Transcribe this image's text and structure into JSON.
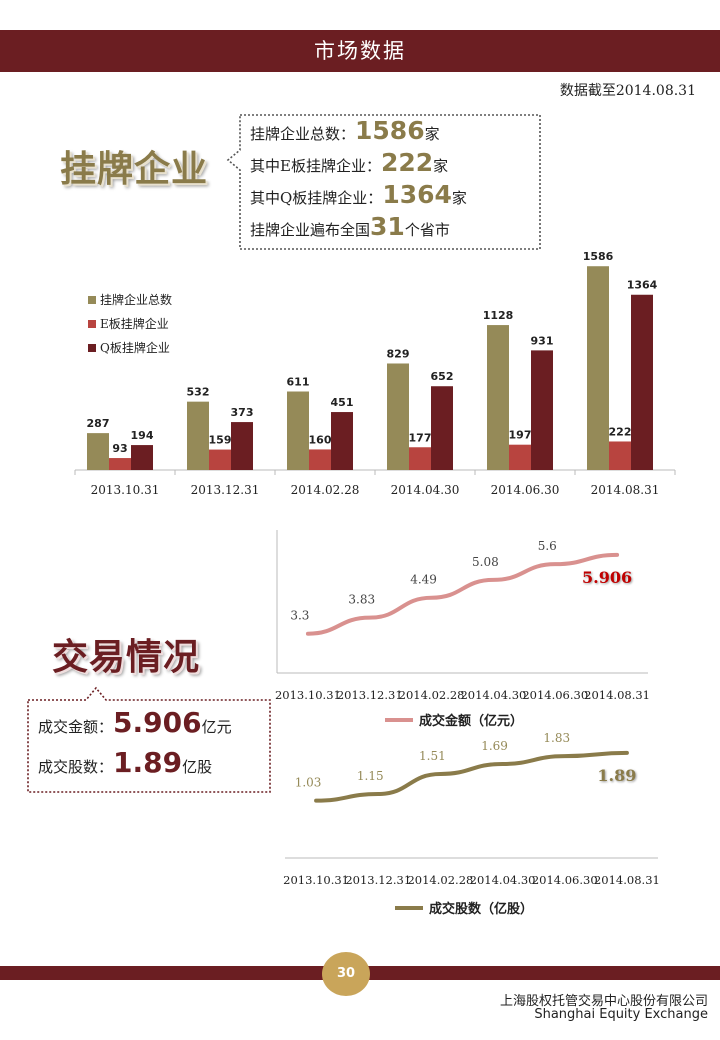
{
  "header": {
    "title": "市场数据"
  },
  "as_of": "数据截至2014.08.31",
  "listed_section": {
    "title": "挂牌企业",
    "lines": [
      {
        "prefix": "挂牌企业总数：",
        "value": "1586",
        "suffix": "家"
      },
      {
        "prefix": "其中E板挂牌企业：",
        "value": "222",
        "suffix": "家"
      },
      {
        "prefix": "其中Q板挂牌企业：",
        "value": "1364",
        "suffix": "家"
      },
      {
        "prefix": "挂牌企业遍布全国",
        "value": "31",
        "suffix": "个省市"
      }
    ]
  },
  "trade_section": {
    "title": "交易情况",
    "lines": [
      {
        "prefix": "成交金额：",
        "value": "5.906",
        "suffix": "亿元"
      },
      {
        "prefix": "成交股数：",
        "value": "1.89",
        "suffix": "亿股"
      }
    ]
  },
  "chart_data": [
    {
      "type": "bar",
      "categories": [
        "2013.10.31",
        "2013.12.31",
        "2014.02.28",
        "2014.04.30",
        "2014.06.30",
        "2014.08.31"
      ],
      "series": [
        {
          "name": "挂牌企业总数",
          "values": [
            287,
            532,
            611,
            829,
            1128,
            1586
          ],
          "color": "#958a58"
        },
        {
          "name": "E板挂牌企业",
          "values": [
            93,
            159,
            160,
            177,
            197,
            222
          ],
          "color": "#b8443f"
        },
        {
          "name": "Q板挂牌企业",
          "values": [
            194,
            373,
            451,
            652,
            931,
            1364
          ],
          "color": "#6b1e22"
        }
      ],
      "ylim": [
        0,
        1650
      ],
      "legend": "left",
      "grid": false
    },
    {
      "type": "line",
      "categories": [
        "2013.10.31",
        "2013.12.31",
        "2014.02.28",
        "2014.04.30",
        "2014.06.30",
        "2014.08.31"
      ],
      "series": [
        {
          "name": "成交金额（亿元）",
          "values": [
            3.3,
            3.83,
            4.49,
            5.08,
            5.6,
            5.906
          ],
          "color": "#d9918f"
        }
      ],
      "ylim": [
        2.0,
        6.4
      ],
      "legend": "bottom",
      "grid": false
    },
    {
      "type": "line",
      "categories": [
        "2013.10.31",
        "2013.12.31",
        "2014.02.28",
        "2014.04.30",
        "2014.06.30",
        "2014.08.31"
      ],
      "series": [
        {
          "name": "成交股数（亿股）",
          "values": [
            1.03,
            1.15,
            1.51,
            1.69,
            1.83,
            1.89
          ],
          "color": "#8a7b4a"
        }
      ],
      "ylim": [
        0.0,
        2.3
      ],
      "legend": "bottom",
      "grid": false
    }
  ],
  "footer": {
    "page_number": "30",
    "company_cn": "上海股权托管交易中心股份有限公司",
    "company_en": "Shanghai Equity Exchange"
  }
}
